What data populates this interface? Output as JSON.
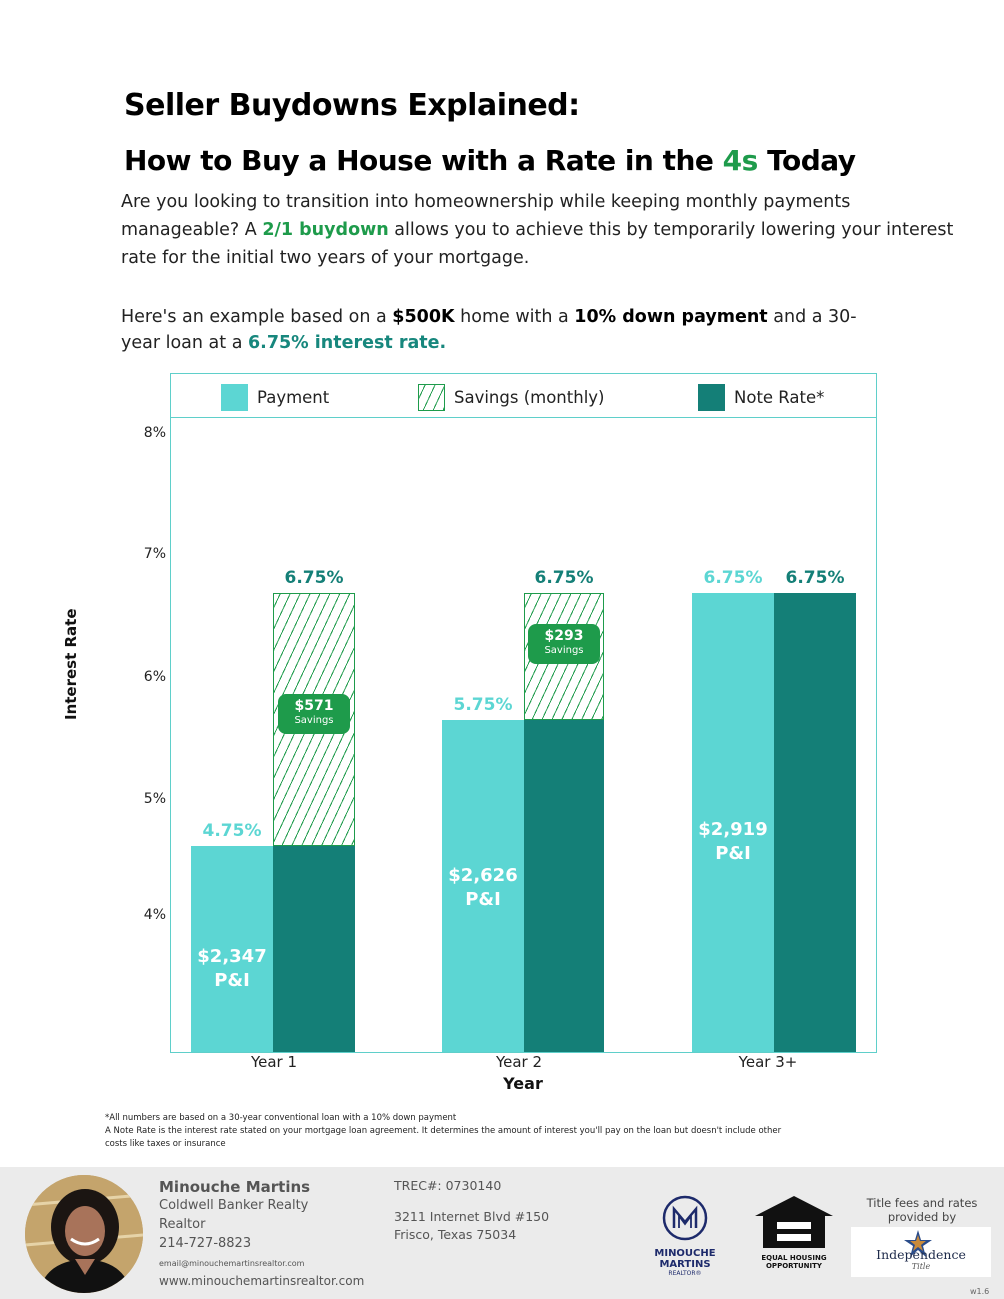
{
  "header": {
    "title": "Seller Buydowns Explained:",
    "subtitle_pre": "How to Buy a House with a Rate in the ",
    "subtitle_highlight": "4s",
    "subtitle_post": " Today"
  },
  "intro": {
    "text1": "Are you looking to transition into homeownership while keeping monthly payments manageable? A ",
    "highlight": "2/1 buydown",
    "text2": " allows you to achieve this by temporarily lowering your interest rate for the initial two years of your mortgage."
  },
  "example": {
    "t1": "Here's an example based on a ",
    "b1": "$500K",
    "t2": " home with a ",
    "b2": "10% down payment",
    "t3": " and a 30-year loan at a ",
    "b3": "6.75% interest rate."
  },
  "legend": {
    "payment": "Payment",
    "savings": "Savings (monthly)",
    "note_rate": "Note Rate*"
  },
  "colors": {
    "payment": "#5cd6d3",
    "note_rate": "#147f77",
    "savings": "#1e9b4b"
  },
  "chart_data": {
    "type": "bar",
    "ylabel": "Interest Rate",
    "xlabel": "Year",
    "y_ticks": [
      "8%",
      "7%",
      "6%",
      "5%",
      "4%"
    ],
    "categories": [
      "Year 1",
      "Year 2",
      "Year 3+"
    ],
    "series": [
      {
        "name": "Payment",
        "values": [
          4.75,
          5.75,
          6.75
        ],
        "labels": [
          "4.75%",
          "5.75%",
          "6.75%"
        ]
      },
      {
        "name": "Note Rate*",
        "values": [
          6.75,
          6.75,
          6.75
        ],
        "labels": [
          "6.75%",
          "6.75%",
          "6.75%"
        ]
      }
    ],
    "payments": [
      "$2,347",
      "$2,626",
      "$2,919"
    ],
    "payment_suffix": "P&I",
    "savings": [
      "$571",
      "$293"
    ],
    "savings_label": "Savings"
  },
  "footnotes": {
    "line1": "*All numbers are based on a 30-year conventional loan with a 10% down payment",
    "line2": "A Note Rate is the interest rate stated on your mortgage loan agreement. It determines the amount of interest you'll pay on the loan but doesn't include other costs like taxes or insurance"
  },
  "agent": {
    "name": "Minouche Martins",
    "company": "Coldwell Banker Realty",
    "role": "Realtor",
    "phone": "214-727-8823",
    "email": "email@minouchemartinsrealtor.com",
    "website": "www.minouchemartinsrealtor.com",
    "trec": "TREC#: 0730140",
    "address1": "3211 Internet Blvd #150",
    "address2": "Frisco, Texas 75034"
  },
  "logos": {
    "mm_name": "MINOUCHE MARTINS",
    "mm_sub": "REALTOR®",
    "eho_line1": "EQUAL HOUSING",
    "eho_line2": "OPPORTUNITY",
    "title_fees": "Title fees and rates provided by",
    "independence": "Independence",
    "independence_sub": "Title"
  },
  "version": "w1.6"
}
